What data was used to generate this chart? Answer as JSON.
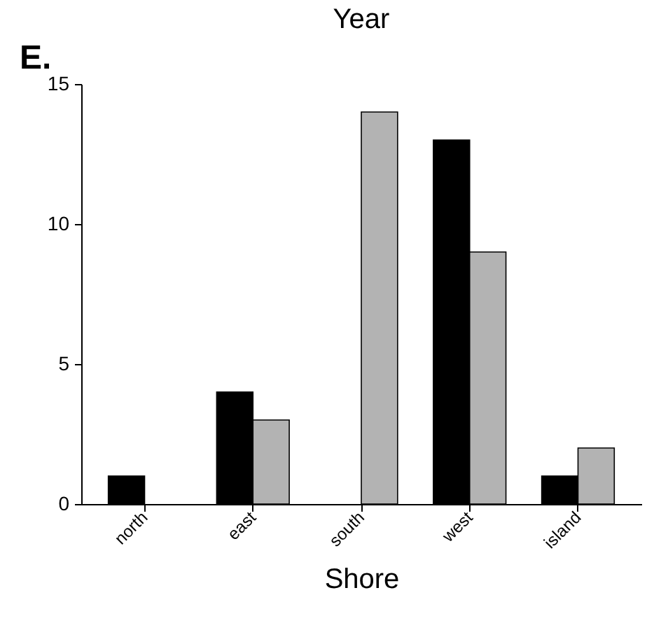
{
  "chart_data": {
    "type": "bar",
    "title": "Year",
    "xlabel": "Shore",
    "annotations": [
      "E."
    ],
    "categories": [
      "north",
      "east",
      "south",
      "west",
      "island"
    ],
    "series": [
      {
        "color": "#000000",
        "values": [
          1,
          4,
          0,
          13,
          1
        ]
      },
      {
        "color": "#b3b3b3",
        "values": [
          0,
          3,
          14,
          9,
          2
        ]
      }
    ],
    "ylim": [
      0,
      15
    ],
    "yticks": [
      0,
      5,
      10,
      15
    ],
    "grid": false,
    "legend": false
  }
}
